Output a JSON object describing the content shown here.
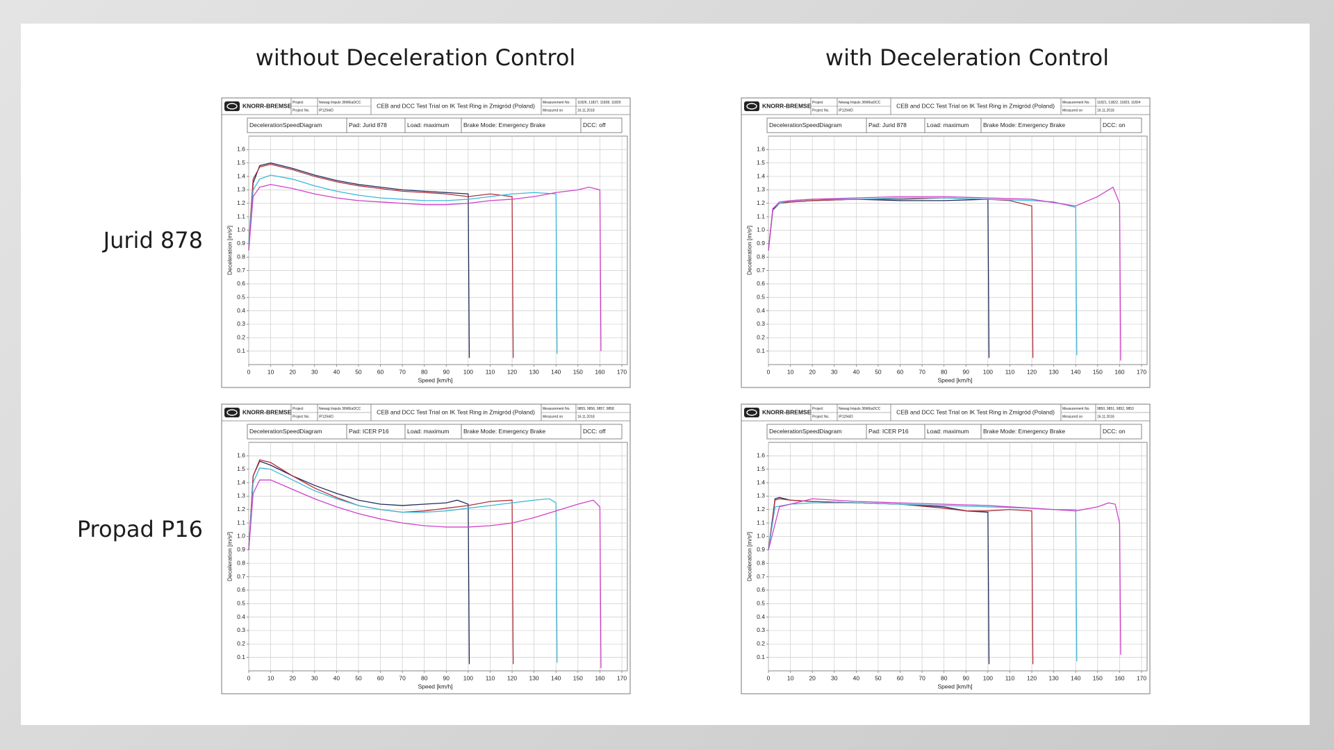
{
  "column_titles": [
    "without Deceleration Control",
    "with Deceleration Control"
  ],
  "row_labels": [
    "Jurid 878",
    "Propad P16"
  ],
  "chart_data": [
    {
      "type": "line",
      "logo": "KNORR-BREMSE",
      "project_label": "Project",
      "project": "Newag Impuls 36WEaDCC",
      "title": "CEB and DCC Test Trial on IK Test Ring in Zmigród (Poland)",
      "measurement_label": "Measurement No.",
      "measurement": "11826, 11827, 11828, 11829",
      "project_no_label": "Project No.",
      "project_no": "IP1294/D",
      "measured_label": "Measured on",
      "measured": "16.11.2018",
      "diagram": "DecelerationSpeedDiagram",
      "pad": "Pad: Jurid 878",
      "load": "Load: maximum",
      "brake_mode": "Brake Mode: Emergency Brake",
      "dcc": "DCC: off",
      "xlabel": "Speed [km/h]",
      "ylabel": "Deceleration [m/s²]",
      "grid": true,
      "xlim": [
        0,
        170
      ],
      "ylim": [
        0,
        1.7
      ],
      "xticks": [
        0,
        10,
        20,
        30,
        40,
        50,
        60,
        70,
        80,
        90,
        100,
        110,
        120,
        130,
        140,
        150,
        160,
        170
      ],
      "yticks": [
        0.1,
        0.2,
        0.3,
        0.4,
        0.5,
        0.6,
        0.7,
        0.8,
        0.9,
        {
          "value": 1,
          "label": "1.0"
        },
        1.1,
        1.2,
        1.3,
        1.4,
        1.5,
        1.6
      ],
      "series": [
        {
          "color": "#1f2a5a",
          "x": [
            0,
            2,
            5,
            10,
            20,
            30,
            40,
            50,
            60,
            70,
            80,
            90,
            100,
            100.5
          ],
          "values": [
            0.85,
            1.35,
            1.48,
            1.5,
            1.46,
            1.41,
            1.37,
            1.34,
            1.32,
            1.3,
            1.29,
            1.28,
            1.27,
            0.05
          ]
        },
        {
          "color": "#b0303a",
          "x": [
            0,
            2,
            5,
            10,
            20,
            30,
            40,
            50,
            60,
            70,
            80,
            90,
            100,
            110,
            120,
            120.5
          ],
          "values": [
            0.9,
            1.38,
            1.47,
            1.49,
            1.45,
            1.4,
            1.36,
            1.33,
            1.31,
            1.29,
            1.28,
            1.27,
            1.25,
            1.27,
            1.25,
            0.05
          ]
        },
        {
          "color": "#3bb8d8",
          "x": [
            0,
            2,
            5,
            10,
            20,
            30,
            40,
            50,
            60,
            70,
            80,
            90,
            100,
            110,
            120,
            130,
            140,
            140.5
          ],
          "values": [
            0.9,
            1.3,
            1.38,
            1.41,
            1.38,
            1.33,
            1.29,
            1.26,
            1.24,
            1.23,
            1.22,
            1.22,
            1.23,
            1.25,
            1.27,
            1.28,
            1.27,
            0.08
          ]
        },
        {
          "color": "#d040c8",
          "x": [
            0,
            2,
            5,
            10,
            20,
            30,
            40,
            50,
            60,
            70,
            80,
            90,
            100,
            110,
            120,
            130,
            140,
            150,
            155,
            160,
            160.5
          ],
          "values": [
            0.85,
            1.25,
            1.32,
            1.34,
            1.31,
            1.27,
            1.24,
            1.22,
            1.21,
            1.2,
            1.19,
            1.19,
            1.2,
            1.22,
            1.23,
            1.25,
            1.28,
            1.3,
            1.32,
            1.3,
            0.1
          ]
        }
      ]
    },
    {
      "type": "line",
      "logo": "KNORR-BREMSE",
      "project_label": "Project",
      "project": "Newag Impuls 36WEaDCC",
      "title": "CEB and DCC Test Trial on IK Test Ring in Zmigród (Poland)",
      "measurement_label": "Measurement No.",
      "measurement": "11821, 11822, 11823, 11824",
      "project_no_label": "Project No.",
      "project_no": "IP1294/D",
      "measured_label": "Measured on",
      "measured": "16.11.2018",
      "diagram": "DecelerationSpeedDiagram",
      "pad": "Pad: Jurid 878",
      "load": "Load: maximum",
      "brake_mode": "Brake Mode: Emergency Brake",
      "dcc": "DCC: on",
      "xlabel": "Speed [km/h]",
      "ylabel": "Deceleration [m/s²]",
      "grid": true,
      "xlim": [
        0,
        170
      ],
      "ylim": [
        0,
        1.7
      ],
      "xticks": [
        0,
        10,
        20,
        30,
        40,
        50,
        60,
        70,
        80,
        90,
        100,
        110,
        120,
        130,
        140,
        150,
        160,
        170
      ],
      "yticks": [
        0.1,
        0.2,
        0.3,
        0.4,
        0.5,
        0.6,
        0.7,
        0.8,
        0.9,
        {
          "value": 1,
          "label": "1.0"
        },
        1.1,
        1.2,
        1.3,
        1.4,
        1.5,
        1.6
      ],
      "series": [
        {
          "color": "#1f2a5a",
          "x": [
            0,
            2,
            5,
            10,
            20,
            40,
            60,
            80,
            100,
            100.5
          ],
          "values": [
            0.85,
            1.15,
            1.2,
            1.21,
            1.22,
            1.23,
            1.22,
            1.22,
            1.23,
            0.05
          ]
        },
        {
          "color": "#b0303a",
          "x": [
            0,
            2,
            5,
            10,
            20,
            40,
            60,
            80,
            100,
            110,
            115,
            120,
            120.5
          ],
          "values": [
            0.85,
            1.16,
            1.2,
            1.21,
            1.22,
            1.23,
            1.23,
            1.24,
            1.23,
            1.22,
            1.2,
            1.18,
            0.05
          ]
        },
        {
          "color": "#3bb8d8",
          "x": [
            0,
            2,
            5,
            10,
            20,
            40,
            60,
            80,
            100,
            120,
            130,
            140,
            140.5
          ],
          "values": [
            0.85,
            1.16,
            1.2,
            1.22,
            1.23,
            1.23,
            1.24,
            1.24,
            1.23,
            1.22,
            1.21,
            1.17,
            0.07
          ]
        },
        {
          "color": "#d040c8",
          "x": [
            0,
            2,
            5,
            10,
            20,
            40,
            60,
            80,
            100,
            120,
            140,
            150,
            157,
            160,
            160.5
          ],
          "values": [
            0.85,
            1.16,
            1.21,
            1.22,
            1.23,
            1.24,
            1.25,
            1.25,
            1.24,
            1.23,
            1.18,
            1.25,
            1.32,
            1.2,
            0.03
          ]
        }
      ]
    },
    {
      "type": "line",
      "logo": "KNORR-BREMSE",
      "project_label": "Project",
      "project": "Newag Impuls 36WEaDCC",
      "title": "CEB and DCC Test Trial on IK Test Ring in Zmigród (Poland)",
      "measurement_label": "Measurement No.",
      "measurement": "9855, 9856, 9857, 9858",
      "project_no_label": "Project No.",
      "project_no": "IP1294/D",
      "measured_label": "Measured on",
      "measured": "16.11.2018",
      "diagram": "DecelerationSpeedDiagram",
      "pad": "Pad: ICER P16",
      "load": "Load: maximum",
      "brake_mode": "Brake Mode: Emergency Brake",
      "dcc": "DCC: off",
      "xlabel": "Speed [km/h]",
      "ylabel": "Deceleration [m/s²]",
      "grid": true,
      "xlim": [
        0,
        170
      ],
      "ylim": [
        0,
        1.7
      ],
      "xticks": [
        0,
        10,
        20,
        30,
        40,
        50,
        60,
        70,
        80,
        90,
        100,
        110,
        120,
        130,
        140,
        150,
        160,
        170
      ],
      "yticks": [
        0.1,
        0.2,
        0.3,
        0.4,
        0.5,
        0.6,
        0.7,
        0.8,
        0.9,
        {
          "value": 1,
          "label": "1.0"
        },
        1.1,
        1.2,
        1.3,
        1.4,
        1.5,
        1.6
      ],
      "series": [
        {
          "color": "#1f2a5a",
          "x": [
            0,
            2,
            5,
            10,
            20,
            30,
            40,
            50,
            60,
            70,
            80,
            90,
            95,
            100,
            100.5
          ],
          "values": [
            0.9,
            1.45,
            1.56,
            1.53,
            1.45,
            1.38,
            1.32,
            1.27,
            1.24,
            1.23,
            1.24,
            1.25,
            1.27,
            1.24,
            0.05
          ]
        },
        {
          "color": "#b0303a",
          "x": [
            0,
            2,
            5,
            10,
            20,
            30,
            40,
            50,
            60,
            70,
            80,
            90,
            100,
            110,
            120,
            120.5
          ],
          "values": [
            0.9,
            1.45,
            1.57,
            1.55,
            1.45,
            1.36,
            1.29,
            1.23,
            1.2,
            1.18,
            1.19,
            1.21,
            1.23,
            1.26,
            1.27,
            0.05
          ]
        },
        {
          "color": "#3bb8d8",
          "x": [
            0,
            2,
            5,
            10,
            20,
            30,
            40,
            50,
            60,
            70,
            80,
            90,
            100,
            110,
            120,
            130,
            137,
            140,
            140.5
          ],
          "values": [
            0.9,
            1.4,
            1.51,
            1.5,
            1.42,
            1.34,
            1.28,
            1.23,
            1.2,
            1.18,
            1.18,
            1.19,
            1.21,
            1.23,
            1.25,
            1.27,
            1.28,
            1.25,
            0.06
          ]
        },
        {
          "color": "#d040c8",
          "x": [
            0,
            2,
            5,
            10,
            20,
            30,
            40,
            50,
            60,
            70,
            80,
            90,
            100,
            110,
            120,
            130,
            140,
            150,
            157,
            160,
            160.5
          ],
          "values": [
            0.9,
            1.32,
            1.42,
            1.42,
            1.35,
            1.28,
            1.22,
            1.17,
            1.13,
            1.1,
            1.08,
            1.07,
            1.07,
            1.08,
            1.1,
            1.14,
            1.19,
            1.24,
            1.27,
            1.22,
            0.02
          ]
        }
      ]
    },
    {
      "type": "line",
      "logo": "KNORR-BREMSE",
      "project_label": "Project",
      "project": "Newag Impuls 36WEaDCC",
      "title": "CEB and DCC Test Trial on IK Test Ring in Zmigród (Poland)",
      "measurement_label": "Measurement No.",
      "measurement": "9850, 9851, 9852, 9853",
      "project_no_label": "Project No.",
      "project_no": "IP1294/D",
      "measured_label": "Measured on",
      "measured": "16.11.2018",
      "diagram": "DecelerationSpeedDiagram",
      "pad": "Pad: ICER P16",
      "load": "Load: maximum",
      "brake_mode": "Brake Mode: Emergency Brake",
      "dcc": "DCC: on",
      "xlabel": "Speed [km/h]",
      "ylabel": "Deceleration [m/s²]",
      "grid": true,
      "xlim": [
        0,
        170
      ],
      "ylim": [
        0,
        1.7
      ],
      "xticks": [
        0,
        10,
        20,
        30,
        40,
        50,
        60,
        70,
        80,
        90,
        100,
        110,
        120,
        130,
        140,
        150,
        160,
        170
      ],
      "yticks": [
        0.1,
        0.2,
        0.3,
        0.4,
        0.5,
        0.6,
        0.7,
        0.8,
        0.9,
        {
          "value": 1,
          "label": "1.0"
        },
        1.1,
        1.2,
        1.3,
        1.4,
        1.5,
        1.6
      ],
      "series": [
        {
          "color": "#1f2a5a",
          "x": [
            0,
            3,
            5,
            10,
            20,
            40,
            60,
            80,
            90,
            100,
            100.5
          ],
          "values": [
            0.9,
            1.28,
            1.29,
            1.27,
            1.26,
            1.25,
            1.24,
            1.22,
            1.19,
            1.18,
            0.05
          ]
        },
        {
          "color": "#b0303a",
          "x": [
            0,
            3,
            5,
            10,
            20,
            40,
            60,
            80,
            90,
            100,
            110,
            120,
            120.5
          ],
          "values": [
            0.9,
            1.27,
            1.28,
            1.27,
            1.26,
            1.25,
            1.24,
            1.21,
            1.19,
            1.19,
            1.2,
            1.19,
            0.05
          ]
        },
        {
          "color": "#3bb8d8",
          "x": [
            0,
            3,
            10,
            20,
            40,
            60,
            80,
            100,
            120,
            130,
            140,
            140.5
          ],
          "values": [
            0.9,
            1.22,
            1.24,
            1.25,
            1.25,
            1.24,
            1.23,
            1.22,
            1.21,
            1.2,
            1.2,
            0.07
          ]
        },
        {
          "color": "#d040c8",
          "x": [
            0,
            5,
            20,
            40,
            60,
            80,
            100,
            120,
            140,
            150,
            155,
            158,
            160,
            160.5
          ],
          "values": [
            0.9,
            1.22,
            1.28,
            1.26,
            1.25,
            1.24,
            1.23,
            1.21,
            1.19,
            1.22,
            1.25,
            1.24,
            1.1,
            0.12
          ]
        }
      ]
    }
  ]
}
